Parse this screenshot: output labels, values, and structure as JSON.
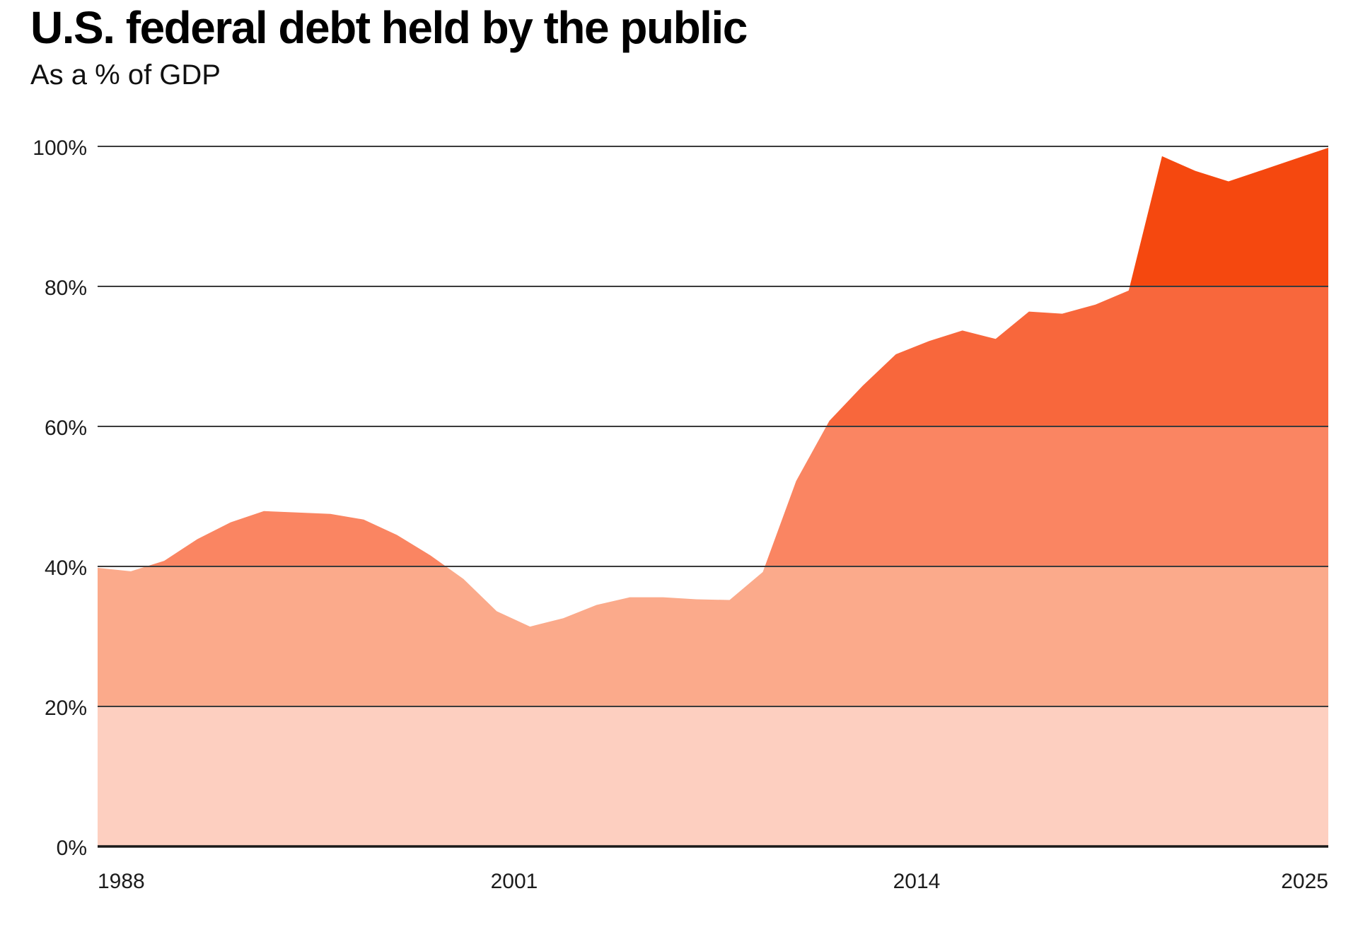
{
  "header": {
    "title": "U.S. federal debt held by the public",
    "subtitle": "As a % of GDP"
  },
  "chart_data": {
    "type": "area",
    "title": "U.S. federal debt held by the public",
    "subtitle": "As a % of GDP",
    "xlabel": "",
    "ylabel": "",
    "series_name": "Federal debt held by the public as a % of GDP",
    "x": [
      1988,
      1989,
      1990,
      1991,
      1992,
      1993,
      1994,
      1995,
      1996,
      1997,
      1998,
      1999,
      2000,
      2001,
      2002,
      2003,
      2004,
      2005,
      2006,
      2007,
      2008,
      2009,
      2010,
      2011,
      2012,
      2013,
      2014,
      2015,
      2016,
      2017,
      2018,
      2019,
      2020,
      2021,
      2022,
      2023,
      2024,
      2025
    ],
    "values": [
      39.8,
      39.3,
      40.8,
      43.9,
      46.3,
      47.9,
      47.7,
      47.5,
      46.7,
      44.5,
      41.6,
      38.2,
      33.6,
      31.4,
      32.6,
      34.5,
      35.6,
      35.6,
      35.3,
      35.2,
      39.2,
      52.2,
      60.8,
      65.8,
      70.3,
      72.2,
      73.7,
      72.5,
      76.4,
      76.1,
      77.4,
      79.4,
      98.6,
      96.5,
      95.0,
      96.6,
      98.2,
      99.8
    ],
    "xlim": [
      1988,
      2025
    ],
    "ylim": [
      0,
      100
    ],
    "grid": true,
    "legend": "none",
    "y_ticks": [
      {
        "value": 0,
        "label": "0%"
      },
      {
        "value": 20,
        "label": "20%"
      },
      {
        "value": 40,
        "label": "40%"
      },
      {
        "value": 60,
        "label": "60%"
      },
      {
        "value": 80,
        "label": "80%"
      },
      {
        "value": 100,
        "label": "100%"
      }
    ],
    "x_ticks": [
      {
        "year": 1988,
        "label": "1988",
        "align": "start",
        "frac": 0
      },
      {
        "year": 2001,
        "label": "2001",
        "align": "middle",
        "frac": 0.3385
      },
      {
        "year": 2014,
        "label": "2014",
        "align": "middle",
        "frac": 0.6655
      },
      {
        "year": 2025,
        "label": "2025",
        "align": "end",
        "frac": 1
      }
    ],
    "band_colors": [
      {
        "range": [
          0,
          20
        ],
        "color": "#fdcfc0"
      },
      {
        "range": [
          20,
          40
        ],
        "color": "#fbaa8b"
      },
      {
        "range": [
          40,
          60
        ],
        "color": "#fa8562"
      },
      {
        "range": [
          60,
          80
        ],
        "color": "#f8673c"
      },
      {
        "range": [
          80,
          100
        ],
        "color": "#f5480f"
      }
    ],
    "gridline_color": "#3b3b3b",
    "baseline_color": "#1a1a1a",
    "axis_text_color": "#1c1c1c"
  }
}
